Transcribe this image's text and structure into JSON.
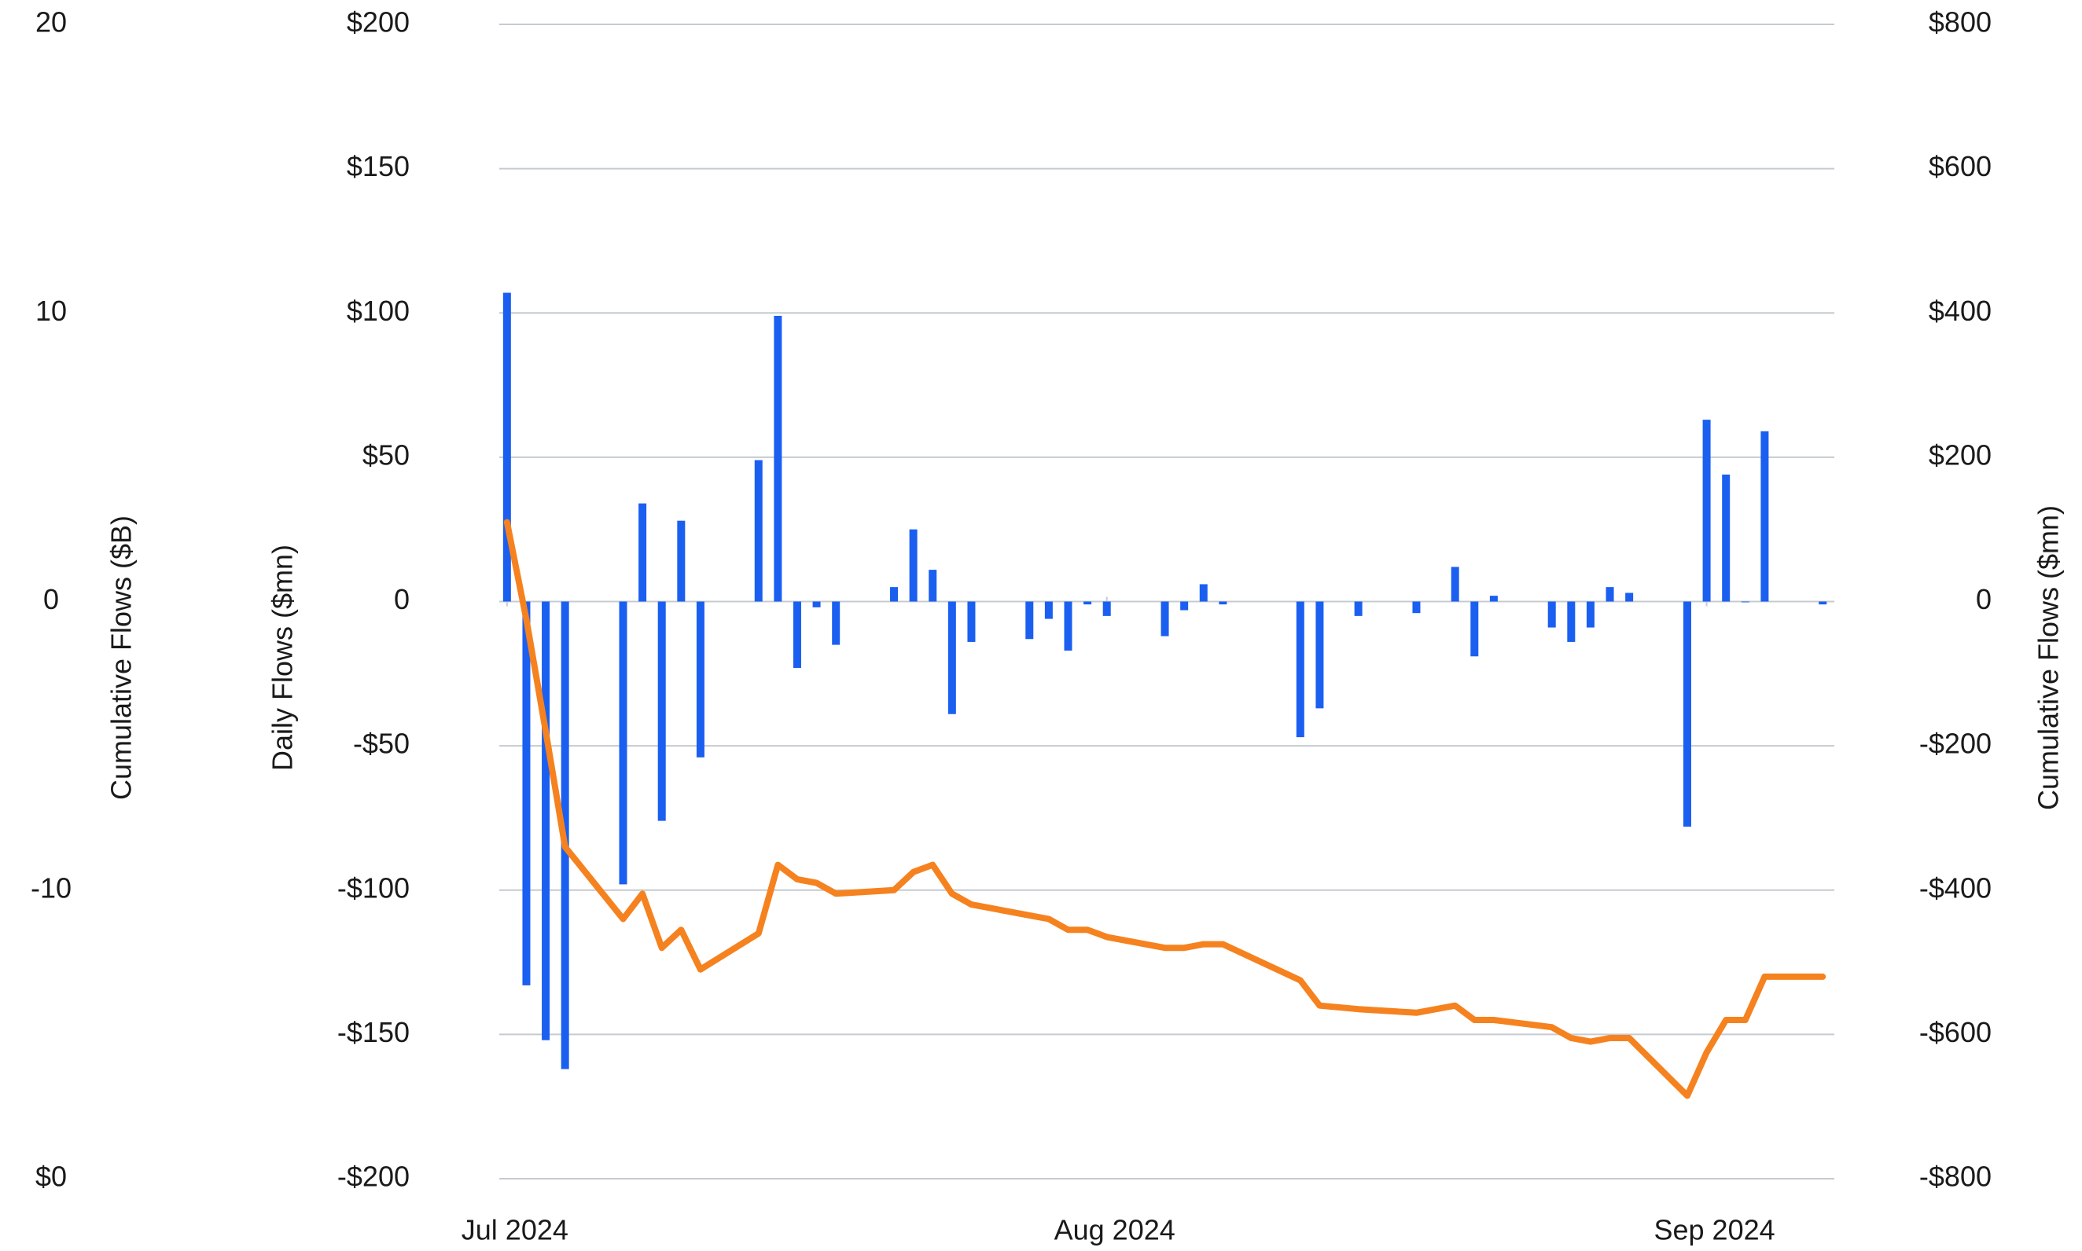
{
  "chart_data": {
    "type": "bar_line",
    "y3label": "Cumulative Flows ($B)",
    "ylabel": "Daily Flows ($mn)",
    "y2label": "Cumulative Flows ($mn)",
    "x": [
      0,
      1,
      2,
      3,
      6,
      7,
      8,
      9,
      10,
      13,
      14,
      15,
      16,
      17,
      20,
      21,
      22,
      23,
      24,
      27,
      28,
      29,
      30,
      31,
      34,
      35,
      36,
      37,
      41,
      42,
      44,
      47,
      49,
      50,
      51,
      54,
      55,
      56,
      57,
      58,
      61,
      62,
      63,
      64,
      65,
      68
    ],
    "xlim": [
      -0.4,
      68.6
    ],
    "xticks": [
      {
        "value": 0,
        "label": "Jul 2024"
      },
      {
        "value": 31,
        "label": "Aug 2024"
      },
      {
        "value": 62,
        "label": "Sep 2024"
      }
    ],
    "ylim": [
      -200,
      200
    ],
    "yticks": [
      {
        "value": 200,
        "label": "$200"
      },
      {
        "value": 150,
        "label": "$150"
      },
      {
        "value": 100,
        "label": "$100"
      },
      {
        "value": 50,
        "label": "$50"
      },
      0,
      {
        "value": -50,
        "label": "-$50"
      },
      {
        "value": -100,
        "label": "-$100"
      },
      {
        "value": -150,
        "label": "-$150"
      },
      {
        "value": -200,
        "label": "-$200"
      }
    ],
    "y2lim": [
      -800,
      800
    ],
    "y2ticks": [
      {
        "value": 800,
        "label": "$800"
      },
      {
        "value": 600,
        "label": "$600"
      },
      {
        "value": 400,
        "label": "$400"
      },
      {
        "value": 200,
        "label": "$200"
      },
      0,
      {
        "value": -200,
        "label": "-$200"
      },
      {
        "value": -400,
        "label": "-$400"
      },
      {
        "value": -600,
        "label": "-$600"
      },
      {
        "value": -800,
        "label": "-$800"
      }
    ],
    "y3lim": [
      -20,
      20
    ],
    "y3ticks": [
      20,
      10,
      0,
      -10,
      {
        "value": -20,
        "label": "$0"
      }
    ],
    "grid": true,
    "series": [
      {
        "name": "Daily Flows",
        "type": "bar",
        "color": "#1a5ff0",
        "values": [
          107,
          -133,
          -152,
          -162,
          -98,
          34,
          -76,
          28,
          -54,
          49,
          99,
          -23,
          -2,
          -15,
          5,
          25,
          11,
          -39,
          -14,
          -13,
          -6,
          -17,
          -1,
          -5,
          -12,
          -3,
          6,
          -1,
          -47,
          -37,
          -5,
          -4,
          12,
          -19,
          2,
          -9,
          -14,
          -9,
          5,
          3,
          -78,
          63,
          44,
          0,
          59,
          -1
        ]
      },
      {
        "name": "Cumulative Flows",
        "type": "line",
        "axis": "y2",
        "color": "#f5821f",
        "values": [
          110,
          -25,
          -180,
          -340,
          -440,
          -405,
          -480,
          -455,
          -510,
          -460,
          -365,
          -385,
          -390,
          -405,
          -400,
          -375,
          -365,
          -405,
          -420,
          -435,
          -440,
          -455,
          -455,
          -465,
          -480,
          -480,
          -475,
          -475,
          -525,
          -560,
          -565,
          -570,
          -560,
          -580,
          -580,
          -590,
          -605,
          -610,
          -605,
          -605,
          -685,
          -625,
          -580,
          -580,
          -520,
          -520
        ]
      }
    ]
  }
}
